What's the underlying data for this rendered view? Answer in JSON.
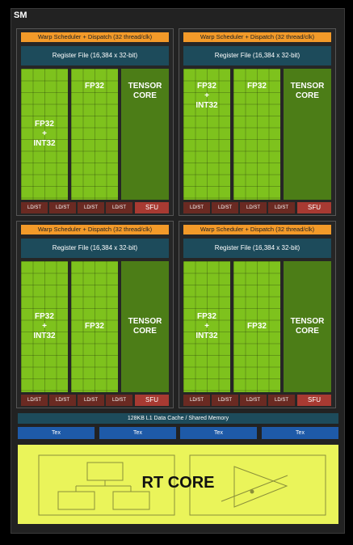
{
  "sm": {
    "label": "SM"
  },
  "partitions": [
    {
      "warp_scheduler": "Warp Scheduler + Dispatch (32 thread/clk)",
      "register_file": "Register File (16,384 x 32-bit)",
      "fp_int": [
        "FP32",
        "+",
        "INT32"
      ],
      "fp32": "FP32",
      "tensor": [
        "TENSOR",
        "CORE"
      ],
      "ldst": [
        "LD/ST",
        "LD/ST",
        "LD/ST",
        "LD/ST"
      ],
      "sfu": "SFU"
    },
    {
      "warp_scheduler": "Warp Scheduler + Dispatch (32 thread/clk)",
      "register_file": "Register File (16,384 x 32-bit)",
      "fp_int": [
        "FP32",
        "+",
        "INT32"
      ],
      "fp32": "FP32",
      "tensor": [
        "TENSOR",
        "CORE"
      ],
      "ldst": [
        "LD/ST",
        "LD/ST",
        "LD/ST",
        "LD/ST"
      ],
      "sfu": "SFU"
    },
    {
      "warp_scheduler": "Warp Scheduler + Dispatch (32 thread/clk)",
      "register_file": "Register File (16,384 x 32-bit)",
      "fp_int": [
        "FP32",
        "+",
        "INT32"
      ],
      "fp32": "FP32",
      "tensor": [
        "TENSOR",
        "CORE"
      ],
      "ldst": [
        "LD/ST",
        "LD/ST",
        "LD/ST",
        "LD/ST"
      ],
      "sfu": "SFU"
    },
    {
      "warp_scheduler": "Warp Scheduler + Dispatch (32 thread/clk)",
      "register_file": "Register File (16,384 x 32-bit)",
      "fp_int": [
        "FP32",
        "+",
        "INT32"
      ],
      "fp32": "FP32",
      "tensor": [
        "TENSOR",
        "CORE"
      ],
      "ldst": [
        "LD/ST",
        "LD/ST",
        "LD/ST",
        "LD/ST"
      ],
      "sfu": "SFU"
    }
  ],
  "cache": "128KB L1 Data Cache / Shared Memory",
  "tex": [
    "Tex",
    "Tex",
    "Tex",
    "Tex"
  ],
  "rt_core": "RT CORE",
  "colors": {
    "warp": "#f39a29",
    "register": "#1d4b5b",
    "fp_green": "#7ec21d",
    "tensor_green": "#4c7d17",
    "ldst": "#6a2a22",
    "sfu": "#a83a32",
    "tex": "#1e5aa8",
    "rt": "#eaf45a"
  }
}
